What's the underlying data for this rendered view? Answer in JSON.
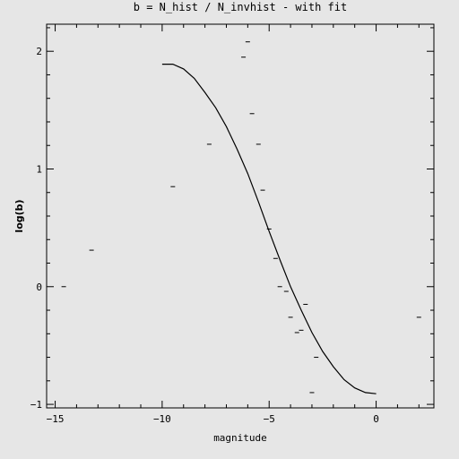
{
  "chart_data": {
    "type": "scatter",
    "title": "b = N_hist / N_invhist - with fit",
    "xlabel": "magnitude",
    "ylabel": "log(b)",
    "xlim": [
      -15.4,
      2.7
    ],
    "ylim": [
      -1.03,
      2.23
    ],
    "x_ticks": [
      {
        "value": -15,
        "label": "−15"
      },
      {
        "value": -10,
        "label": "−10"
      },
      {
        "value": -5,
        "label": "−5"
      },
      {
        "value": 0,
        "label": "0"
      }
    ],
    "y_ticks": [
      {
        "value": -1,
        "label": "−1"
      },
      {
        "value": 0,
        "label": "0"
      },
      {
        "value": 1,
        "label": "1"
      },
      {
        "value": 2,
        "label": "2"
      }
    ],
    "grid": false,
    "points": [
      {
        "x": -14.6,
        "y": 0.0
      },
      {
        "x": -13.3,
        "y": 0.31
      },
      {
        "x": -9.5,
        "y": 0.85
      },
      {
        "x": -7.8,
        "y": 1.21
      },
      {
        "x": -6.2,
        "y": 1.95
      },
      {
        "x": -6.0,
        "y": 2.08
      },
      {
        "x": -5.8,
        "y": 1.47
      },
      {
        "x": -5.5,
        "y": 1.21
      },
      {
        "x": -5.3,
        "y": 0.82
      },
      {
        "x": -5.0,
        "y": 0.49
      },
      {
        "x": -4.7,
        "y": 0.24
      },
      {
        "x": -4.5,
        "y": 0.0
      },
      {
        "x": -4.2,
        "y": -0.04
      },
      {
        "x": -4.0,
        "y": -0.26
      },
      {
        "x": -3.7,
        "y": -0.39
      },
      {
        "x": -3.5,
        "y": -0.37
      },
      {
        "x": -3.3,
        "y": -0.15
      },
      {
        "x": -3.0,
        "y": -0.9
      },
      {
        "x": -2.8,
        "y": -0.6
      },
      {
        "x": 2.0,
        "y": -0.26
      }
    ],
    "fit_curve": [
      {
        "x": -10.0,
        "y": 1.89
      },
      {
        "x": -9.5,
        "y": 1.89
      },
      {
        "x": -9.0,
        "y": 1.85
      },
      {
        "x": -8.5,
        "y": 1.77
      },
      {
        "x": -8.0,
        "y": 1.65
      },
      {
        "x": -7.5,
        "y": 1.52
      },
      {
        "x": -7.0,
        "y": 1.36
      },
      {
        "x": -6.5,
        "y": 1.17
      },
      {
        "x": -6.0,
        "y": 0.96
      },
      {
        "x": -5.5,
        "y": 0.72
      },
      {
        "x": -5.0,
        "y": 0.47
      },
      {
        "x": -4.5,
        "y": 0.23
      },
      {
        "x": -4.0,
        "y": 0.0
      },
      {
        "x": -3.5,
        "y": -0.2
      },
      {
        "x": -3.0,
        "y": -0.39
      },
      {
        "x": -2.5,
        "y": -0.55
      },
      {
        "x": -2.0,
        "y": -0.68
      },
      {
        "x": -1.5,
        "y": -0.79
      },
      {
        "x": -1.0,
        "y": -0.86
      },
      {
        "x": -0.5,
        "y": -0.9
      },
      {
        "x": 0.0,
        "y": -0.91
      }
    ]
  }
}
